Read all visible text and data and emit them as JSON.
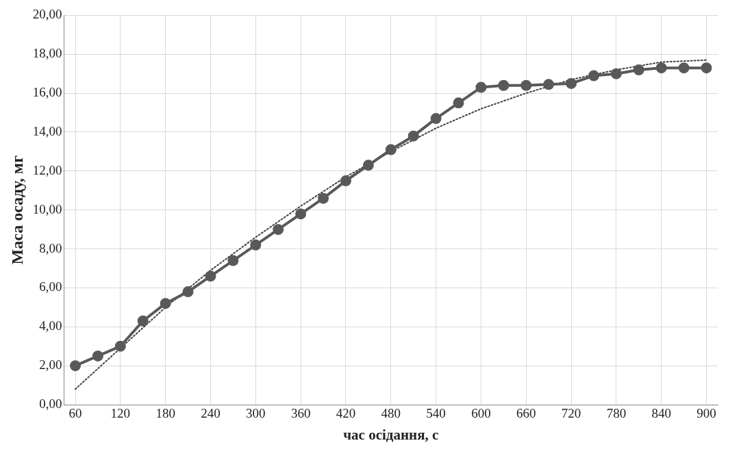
{
  "chart_data": {
    "type": "line",
    "xlabel": "час осідання, с",
    "ylabel": "Маса осаду, мг",
    "xlim": [
      45,
      915
    ],
    "xticks": [
      60,
      120,
      180,
      240,
      300,
      360,
      420,
      480,
      540,
      600,
      660,
      720,
      780,
      840,
      900
    ],
    "ylim": [
      0,
      20
    ],
    "yticks": [
      {
        "value": 0,
        "label": "0,00"
      },
      {
        "value": 2,
        "label": "2,00"
      },
      {
        "value": 4,
        "label": "4,00"
      },
      {
        "value": 6,
        "label": "6,00"
      },
      {
        "value": 8,
        "label": "8,00"
      },
      {
        "value": 10,
        "label": "10,00"
      },
      {
        "value": 12,
        "label": "12,00"
      },
      {
        "value": 14,
        "label": "14,00"
      },
      {
        "value": 16,
        "label": "16,00"
      },
      {
        "value": 18,
        "label": "18,00"
      },
      {
        "value": 20,
        "label": "20,00"
      }
    ],
    "grid": true,
    "legend": false,
    "series": [
      {
        "type": "line",
        "color": "#595959",
        "marker": "circle",
        "line_style": "solid",
        "x": [
          60,
          90,
          120,
          150,
          180,
          210,
          240,
          270,
          300,
          330,
          360,
          390,
          420,
          450,
          480,
          510,
          540,
          570,
          600,
          630,
          660,
          690,
          720,
          750,
          780,
          810,
          840,
          870,
          900
        ],
        "values": [
          2.0,
          2.5,
          3.0,
          4.3,
          5.2,
          5.8,
          6.6,
          7.4,
          8.2,
          9.0,
          9.8,
          10.6,
          11.5,
          12.3,
          13.1,
          13.8,
          14.7,
          15.5,
          16.3,
          16.4,
          16.4,
          16.45,
          16.5,
          16.9,
          17.0,
          17.2,
          17.3,
          17.3,
          17.3
        ]
      },
      {
        "type": "line",
        "color": "#404040",
        "marker": "none",
        "line_style": "dotted",
        "x": [
          60,
          120,
          180,
          240,
          300,
          360,
          420,
          480,
          540,
          600,
          660,
          720,
          780,
          840,
          900
        ],
        "values": [
          0.8,
          2.9,
          5.0,
          6.9,
          8.6,
          10.2,
          11.7,
          13.0,
          14.2,
          15.2,
          16.0,
          16.7,
          17.2,
          17.6,
          17.7
        ]
      }
    ]
  }
}
